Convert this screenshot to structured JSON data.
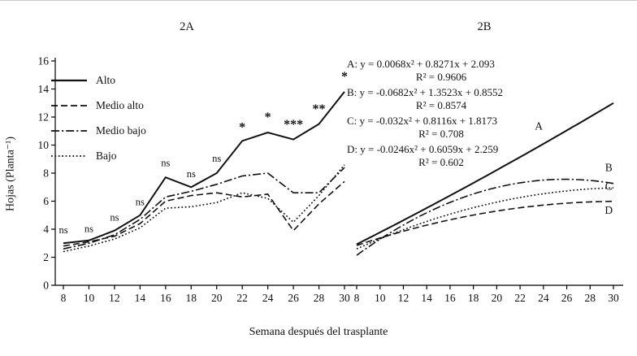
{
  "figure": {
    "xlabel": "Semana después del trasplante",
    "ylabel": "Hojas (Planta⁻¹)"
  },
  "chart_data": [
    {
      "id": "2A",
      "type": "line",
      "title": "2A",
      "xlabel": "Semana después del trasplante",
      "ylabel": "Hojas (Planta⁻¹)",
      "x": [
        8,
        10,
        12,
        14,
        16,
        18,
        20,
        22,
        24,
        26,
        28,
        30
      ],
      "ylim": [
        0,
        16
      ],
      "yticks": [
        0,
        2,
        4,
        6,
        8,
        10,
        12,
        14,
        16
      ],
      "grid": false,
      "legend_position": "top-left",
      "series": [
        {
          "name": "Alto",
          "style": "solid",
          "values": [
            3.0,
            3.2,
            3.9,
            5.0,
            7.7,
            7.0,
            8.0,
            10.3,
            10.9,
            10.4,
            11.5,
            13.8
          ]
        },
        {
          "name": "Medio alto",
          "style": "dashed",
          "values": [
            2.8,
            3.1,
            3.5,
            4.4,
            6.0,
            6.4,
            6.6,
            6.3,
            6.5,
            3.9,
            5.8,
            7.4
          ]
        },
        {
          "name": "Medio bajo",
          "style": "dashdot",
          "values": [
            2.6,
            3.0,
            3.6,
            4.7,
            6.3,
            6.7,
            7.2,
            7.8,
            8.0,
            6.6,
            6.6,
            8.4
          ]
        },
        {
          "name": "Bajo",
          "style": "dotted",
          "values": [
            2.4,
            2.8,
            3.3,
            4.1,
            5.5,
            5.6,
            5.9,
            6.6,
            6.2,
            4.5,
            6.4,
            8.6
          ]
        }
      ],
      "annotations": [
        {
          "x": 8,
          "y": 3.7,
          "text": "ns"
        },
        {
          "x": 10,
          "y": 3.8,
          "text": "ns"
        },
        {
          "x": 12,
          "y": 4.6,
          "text": "ns"
        },
        {
          "x": 14,
          "y": 5.7,
          "text": "ns"
        },
        {
          "x": 16,
          "y": 8.5,
          "text": "ns"
        },
        {
          "x": 18,
          "y": 7.7,
          "text": "ns"
        },
        {
          "x": 20,
          "y": 8.8,
          "text": "ns"
        },
        {
          "x": 22,
          "y": 11.0,
          "text": "*"
        },
        {
          "x": 24,
          "y": 11.7,
          "text": "*"
        },
        {
          "x": 26,
          "y": 11.2,
          "text": "***"
        },
        {
          "x": 28,
          "y": 12.3,
          "text": "**"
        },
        {
          "x": 30,
          "y": 14.6,
          "text": "*"
        }
      ]
    },
    {
      "id": "2B",
      "type": "line",
      "title": "2B",
      "xlabel": "Semana después del trasplante",
      "x": [
        8,
        10,
        12,
        14,
        16,
        18,
        20,
        22,
        24,
        26,
        28,
        30
      ],
      "ylim": [
        0,
        16
      ],
      "yticks": [
        0,
        2,
        4,
        6,
        8,
        10,
        12,
        14,
        16
      ],
      "grid": false,
      "series": [
        {
          "name": "A",
          "style": "solid",
          "coeffs": [
            0.0068,
            0.8271,
            2.093
          ],
          "equation": "A: y = 0.0068x² + 0.8271x + 2.093",
          "r2": "R² = 0.9606"
        },
        {
          "name": "B",
          "style": "dashdot",
          "coeffs": [
            -0.0682,
            1.3523,
            0.8552
          ],
          "equation": "B: y = -0.0682x² + 1.3523x + 0.8552",
          "r2": "R² = 0.8574"
        },
        {
          "name": "C",
          "style": "dotted",
          "coeffs": [
            -0.032,
            0.8116,
            1.8173
          ],
          "equation": "C: y = -0.032x² + 0.8116x + 1.8173",
          "r2": "R² = 0.708"
        },
        {
          "name": "D",
          "style": "dashed",
          "coeffs": [
            -0.0246,
            0.6059,
            2.259
          ],
          "equation": "D: y = -0.0246x² + 0.6059x + 2.259",
          "r2": "R² = 0.602"
        }
      ],
      "annotations": [
        {
          "x": 23.6,
          "y": 11.1,
          "text": "A"
        },
        {
          "x": 29.6,
          "y": 8.15,
          "text": "B"
        },
        {
          "x": 29.6,
          "y": 6.8,
          "text": "C"
        },
        {
          "x": 29.6,
          "y": 5.1,
          "text": "D"
        }
      ]
    }
  ]
}
